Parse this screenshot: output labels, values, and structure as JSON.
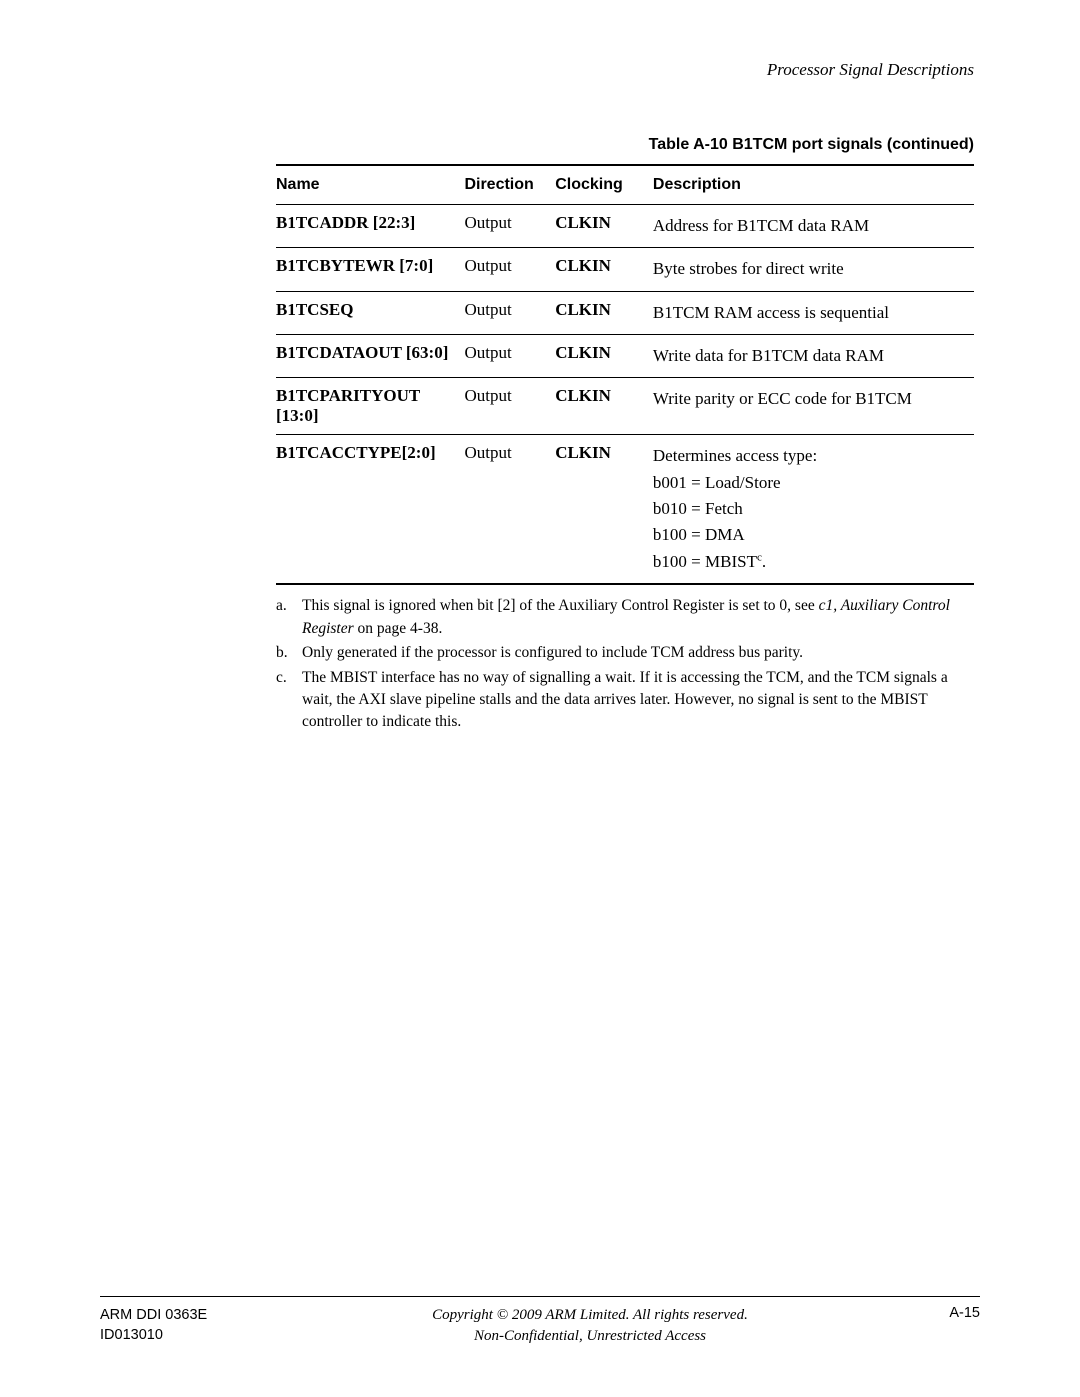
{
  "header": {
    "section_title": "Processor Signal Descriptions"
  },
  "table": {
    "caption": "Table A-10 B1TCM port signals (continued)",
    "columns": [
      "Name",
      "Direction",
      "Clocking",
      "Description"
    ],
    "rows": [
      {
        "name": "B1TCADDR [22:3]",
        "direction": "Output",
        "clocking": "CLKIN",
        "description": [
          "Address for B1TCM data RAM"
        ]
      },
      {
        "name": "B1TCBYTEWR [7:0]",
        "direction": "Output",
        "clocking": "CLKIN",
        "description": [
          "Byte strobes for direct write"
        ]
      },
      {
        "name": "B1TCSEQ",
        "direction": "Output",
        "clocking": "CLKIN",
        "description": [
          "B1TCM RAM access is sequential"
        ]
      },
      {
        "name": "B1TCDATAOUT [63:0]",
        "direction": "Output",
        "clocking": "CLKIN",
        "description": [
          "Write data for B1TCM data RAM"
        ]
      },
      {
        "name": "B1TCPARITYOUT [13:0]",
        "direction": "Output",
        "clocking": "CLKIN",
        "description": [
          "Write parity or ECC code for B1TCM"
        ]
      },
      {
        "name": "B1TCACCTYPE[2:0]",
        "direction": "Output",
        "clocking": "CLKIN",
        "description": [
          "Determines access type:",
          "b001 = Load/Store",
          "b010 = Fetch",
          "b100 = DMA",
          "b100 = MBIST"
        ],
        "desc_suffix_sup": "c",
        "desc_suffix_dot": "."
      }
    ]
  },
  "footnotes": [
    {
      "label": "a.",
      "pre": "This signal is ignored when bit [2] of the Auxiliary Control Register is set to 0, see ",
      "italic": "c1, Auxiliary Control Register",
      "post": " on page 4-38."
    },
    {
      "label": "b.",
      "pre": "Only generated if the processor is configured to include TCM address bus parity.",
      "italic": "",
      "post": ""
    },
    {
      "label": "c.",
      "pre": "The MBIST interface has no way of signalling a wait. If it is accessing the TCM, and the TCM signals a wait, the AXI slave pipeline stalls and the data arrives later. However, no signal is sent to the MBIST controller to indicate this.",
      "italic": "",
      "post": ""
    }
  ],
  "footer": {
    "left_line1": "ARM DDI 0363E",
    "left_line2": "ID013010",
    "center_line1": "Copyright © 2009 ARM Limited. All rights reserved.",
    "center_line2": "Non-Confidential, Unrestricted Access",
    "right": "A-15"
  }
}
